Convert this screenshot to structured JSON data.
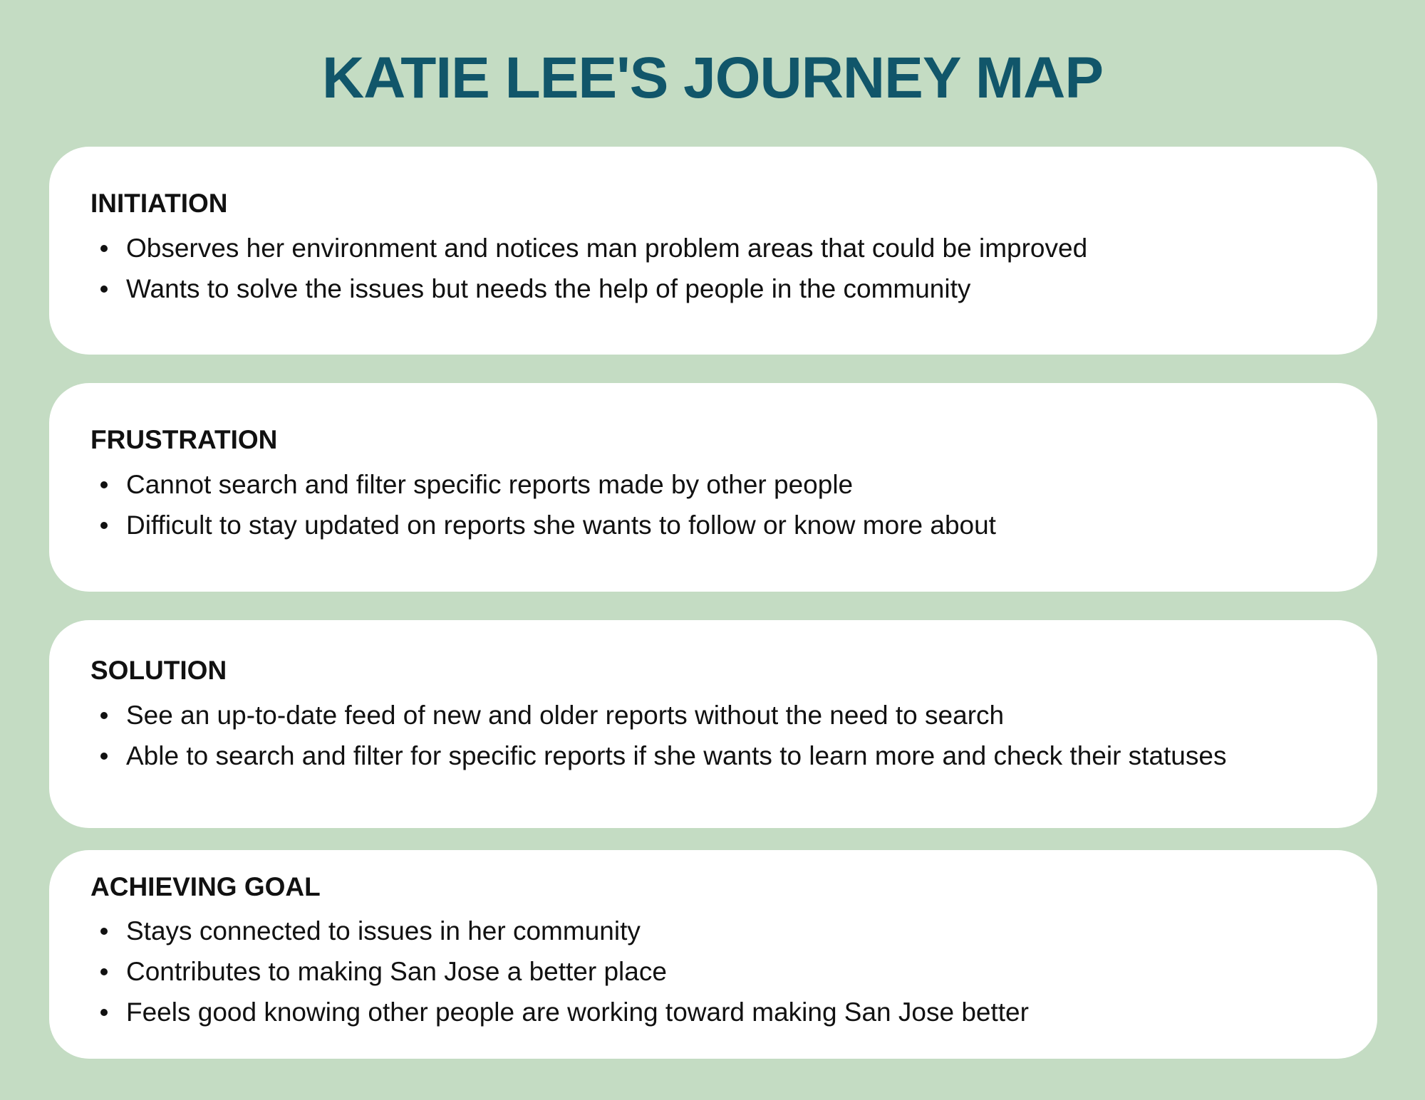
{
  "title": "KATIE LEE'S JOURNEY MAP",
  "stages": [
    {
      "heading": "INITIATION",
      "items": [
        "Observes her environment and notices man problem areas that could be improved",
        "Wants to solve the issues but needs the help of people in the community"
      ]
    },
    {
      "heading": "FRUSTRATION",
      "items": [
        "Cannot search and filter specific reports made by other people",
        "Difficult to stay updated on reports she wants to follow or know more about"
      ]
    },
    {
      "heading": "SOLUTION",
      "items": [
        "See an up-to-date feed of new and older reports without the need to search",
        "Able to search and filter for specific reports if she wants to learn more and check their statuses"
      ]
    },
    {
      "heading": "ACHIEVING GOAL",
      "items": [
        "Stays connected to issues in her community",
        "Contributes to making San Jose a better place",
        "Feels good knowing other people are working toward making San Jose better"
      ]
    }
  ],
  "colors": {
    "background": "#c4dcc3",
    "title": "#11566a",
    "card": "#ffffff",
    "text": "#111111"
  }
}
